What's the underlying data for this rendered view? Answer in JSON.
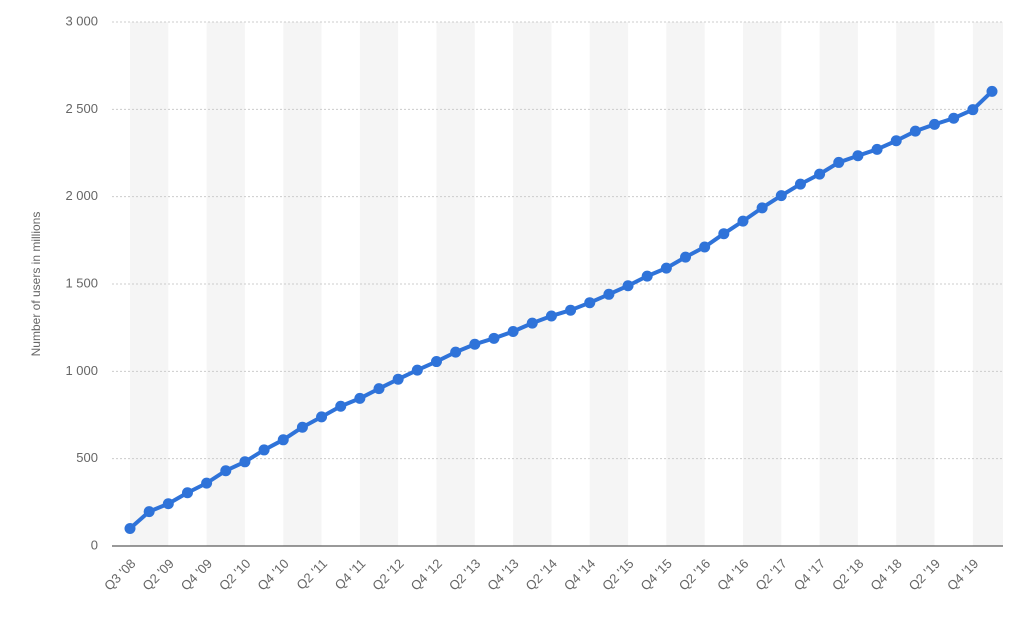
{
  "chart_data": {
    "type": "line",
    "y_label": "Number of users in millions",
    "categories": [
      "Q3 '08",
      null,
      "Q2 '09",
      null,
      "Q4 '09",
      null,
      "Q2 '10",
      null,
      "Q4 '10",
      null,
      "Q2 '11",
      null,
      "Q4 '11",
      null,
      "Q2 '12",
      null,
      "Q4 '12",
      null,
      "Q2 '13",
      null,
      "Q4 '13",
      null,
      "Q2 '14",
      null,
      "Q4 '14",
      null,
      "Q2 '15",
      null,
      "Q4 '15",
      null,
      "Q2 '16",
      null,
      "Q4 '16",
      null,
      "Q2 '17",
      null,
      "Q4 '17",
      null,
      "Q2 '18",
      null,
      "Q4 '18",
      null,
      "Q2 '19",
      null,
      "Q4 '19",
      null
    ],
    "series": [
      {
        "color": "#2f73d9",
        "values": [
          100,
          197,
          242,
          305,
          360,
          431,
          482,
          550,
          608,
          680,
          739,
          800,
          845,
          901,
          955,
          1007,
          1056,
          1110,
          1155,
          1189,
          1228,
          1276,
          1317,
          1350,
          1393,
          1441,
          1490,
          1545,
          1591,
          1654,
          1712,
          1788,
          1860,
          1936,
          2006,
          2072,
          2129,
          2196,
          2234,
          2271,
          2320,
          2375,
          2414,
          2449,
          2498,
          2603
        ]
      }
    ],
    "ylim": [
      0,
      3000
    ],
    "yticks": [
      0,
      500,
      {
        "value": 1000,
        "label": "1 000"
      },
      {
        "value": 1500,
        "label": "1 500"
      },
      {
        "value": 2000,
        "label": "2 000"
      },
      {
        "value": 2500,
        "label": "2 500"
      },
      {
        "value": 3000,
        "label": "3 000"
      }
    ],
    "grid": true
  }
}
